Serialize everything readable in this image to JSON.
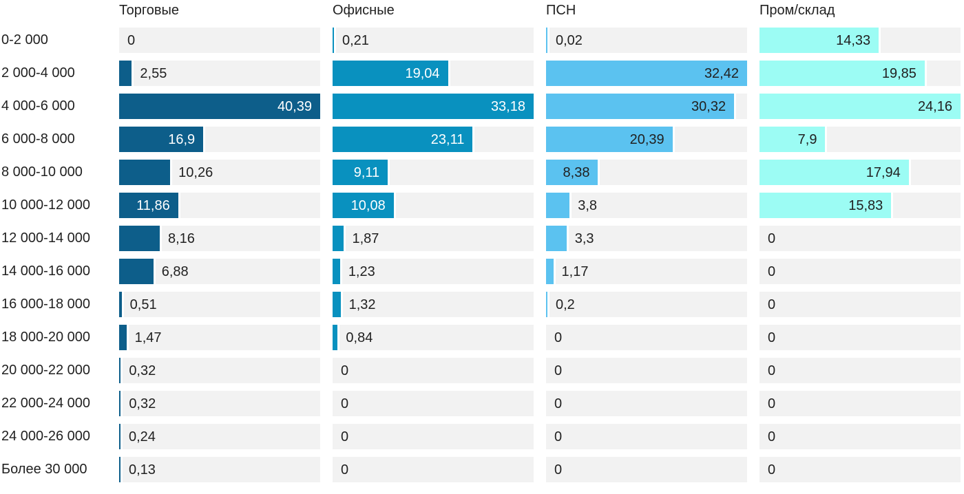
{
  "chart_data": {
    "type": "bar",
    "orientation": "horizontal",
    "title": "",
    "xlabel": "",
    "ylabel": "",
    "grid": false,
    "legend_position": "column-headers-top",
    "scaling": "each series normalized to its own max value",
    "value_format": "comma-decimal",
    "track_color": "#f2f2f2",
    "text_color": "#212121",
    "background_color": "#ffffff",
    "categories": [
      "0-2 000",
      "2 000-4 000",
      "4 000-6 000",
      "6 000-8 000",
      "8 000-10 000",
      "10 000-12 000",
      "12 000-14 000",
      "14 000-16 000",
      "16 000-18 000",
      "18 000-20 000",
      "20 000-22 000",
      "22 000-24 000",
      "24 000-26 000",
      "Более 30 000"
    ],
    "series": [
      {
        "name": "Торговые",
        "color": "#0d5e8a",
        "inside_label_color": "#ffffff",
        "max": 40.39,
        "values": [
          0,
          2.55,
          40.39,
          16.9,
          10.26,
          11.86,
          8.16,
          6.88,
          0.51,
          1.47,
          0.32,
          0.32,
          0.24,
          0.13
        ],
        "labels": [
          "0",
          "2,55",
          "40,39",
          "16,9",
          "10,26",
          "11,86",
          "8,16",
          "6,88",
          "0,51",
          "1,47",
          "0,32",
          "0,32",
          "0,24",
          "0,13"
        ]
      },
      {
        "name": "Офисные",
        "color": "#0991bf",
        "inside_label_color": "#ffffff",
        "max": 33.18,
        "values": [
          0.21,
          19.04,
          33.18,
          23.11,
          9.11,
          10.08,
          1.87,
          1.23,
          1.32,
          0.84,
          0,
          0,
          0,
          0
        ],
        "labels": [
          "0,21",
          "19,04",
          "33,18",
          "23,11",
          "9,11",
          "10,08",
          "1,87",
          "1,23",
          "1,32",
          "0,84",
          "0",
          "0",
          "0",
          "0"
        ]
      },
      {
        "name": "ПСН",
        "color": "#5bc2f0",
        "inside_label_color": "#212121",
        "max": 32.42,
        "values": [
          0.02,
          32.42,
          30.32,
          20.39,
          8.38,
          3.8,
          3.3,
          1.17,
          0.2,
          0,
          0,
          0,
          0,
          0
        ],
        "labels": [
          "0,02",
          "32,42",
          "30,32",
          "20,39",
          "8,38",
          "3,8",
          "3,3",
          "1,17",
          "0,2",
          "0",
          "0",
          "0",
          "0",
          "0"
        ]
      },
      {
        "name": "Пром/склад",
        "color": "#9cfcf4",
        "inside_label_color": "#212121",
        "max": 24.16,
        "values": [
          14.33,
          19.85,
          24.16,
          7.9,
          17.94,
          15.83,
          0,
          0,
          0,
          0,
          0,
          0,
          0,
          0
        ],
        "labels": [
          "14,33",
          "19,85",
          "24,16",
          "7,9",
          "17,94",
          "15,83",
          "0",
          "0",
          "0",
          "0",
          "0",
          "0",
          "0",
          "0"
        ]
      }
    ]
  }
}
